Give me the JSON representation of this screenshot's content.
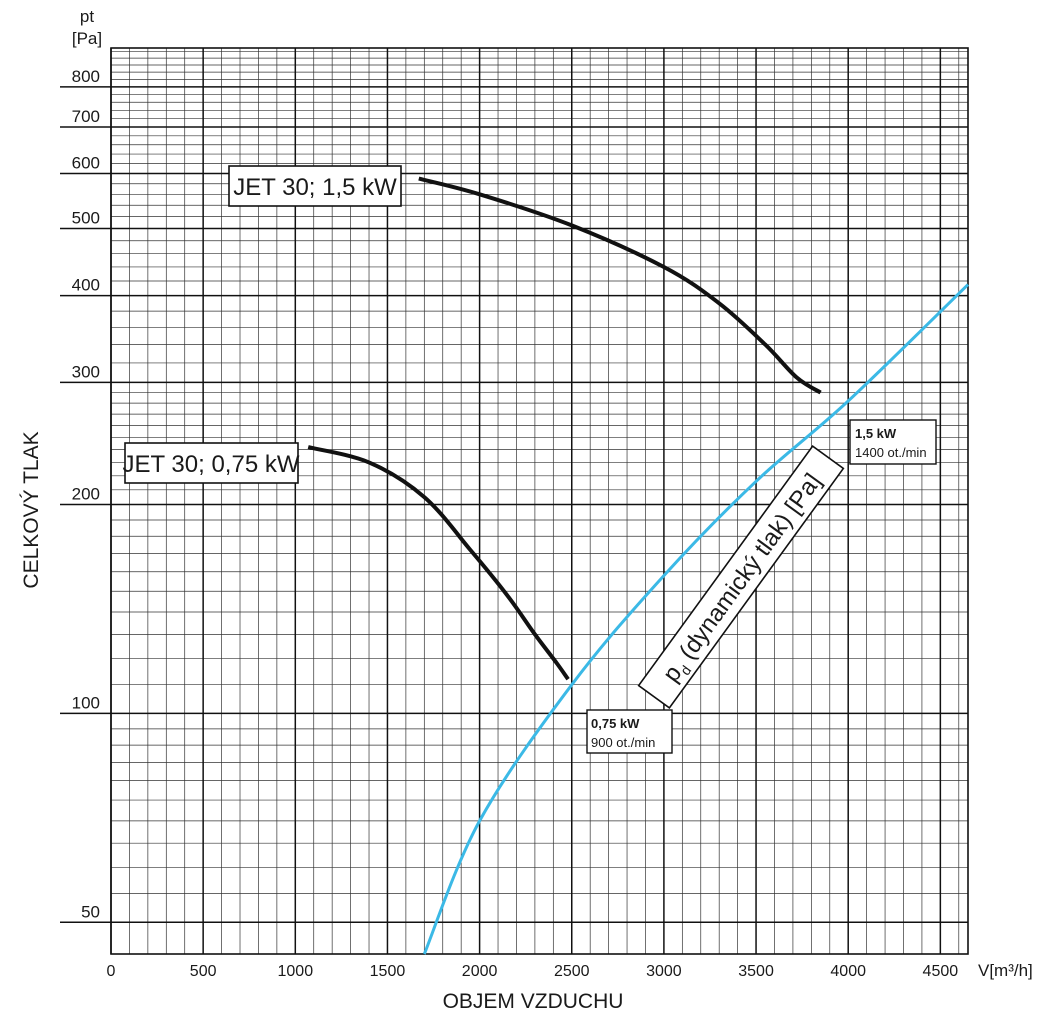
{
  "chart_data": {
    "type": "line",
    "y_scale": "log",
    "x_range": [
      0,
      4650
    ],
    "y_range": [
      45,
      910
    ],
    "grid": true,
    "y_unit_top": "pt",
    "y_unit_bottom": "[Pa]",
    "ylabel": "CELKOVÝ TLAK",
    "xlabel": "OBJEM VZDUCHU",
    "x_unit": "V[m³/h]",
    "x_ticks": [
      {
        "v": 0,
        "label": "0"
      },
      {
        "v": 500,
        "label": "500"
      },
      {
        "v": 1000,
        "label": "1000"
      },
      {
        "v": 1500,
        "label": "1500"
      },
      {
        "v": 2000,
        "label": "2000"
      },
      {
        "v": 2500,
        "label": "2500"
      },
      {
        "v": 3000,
        "label": "3000"
      },
      {
        "v": 3500,
        "label": "3500"
      },
      {
        "v": 4000,
        "label": "4000"
      },
      {
        "v": 4500,
        "label": "4500"
      }
    ],
    "y_ticks": [
      {
        "v": 50,
        "label": "50"
      },
      {
        "v": 100,
        "label": "100"
      },
      {
        "v": 200,
        "label": "200"
      },
      {
        "v": 300,
        "label": "300"
      },
      {
        "v": 400,
        "label": "400"
      },
      {
        "v": 500,
        "label": "500"
      },
      {
        "v": 600,
        "label": "600"
      },
      {
        "v": 700,
        "label": "700"
      },
      {
        "v": 800,
        "label": "800"
      }
    ],
    "series": [
      {
        "name": "JET 30; 1,5 kW",
        "color": "#111111",
        "x": [
          1670,
          2000,
          2500,
          3000,
          3300,
          3550,
          3720,
          3850
        ],
        "y": [
          590,
          560,
          505,
          440,
          390,
          340,
          305,
          290
        ]
      },
      {
        "name": "JET 30; 0,75 kW",
        "color": "#111111",
        "x": [
          1070,
          1400,
          1700,
          1950,
          2150,
          2300,
          2420,
          2480
        ],
        "y": [
          242,
          230,
          205,
          172,
          148,
          130,
          118,
          112
        ]
      },
      {
        "name": "pd (dynamický tlak) [Pa]",
        "color": "#3bb9e6",
        "x": [
          1700,
          2000,
          2500,
          3000,
          3500,
          4000,
          4650
        ],
        "y": [
          45,
          70,
          110,
          158,
          216,
          282,
          415
        ]
      }
    ],
    "callouts": [
      {
        "label": "JET 30; 1,5 kW"
      },
      {
        "label": "JET 30; 0,75 kW"
      }
    ],
    "badges": [
      {
        "main": "1,5  kW",
        "sub": "1400 ot./min"
      },
      {
        "main": "0,75  kW",
        "sub": "900 ot./min"
      }
    ],
    "rotated_label": {
      "p": "p",
      "sub": "d",
      "rest": " (dynamický tlak) [Pa]"
    }
  }
}
